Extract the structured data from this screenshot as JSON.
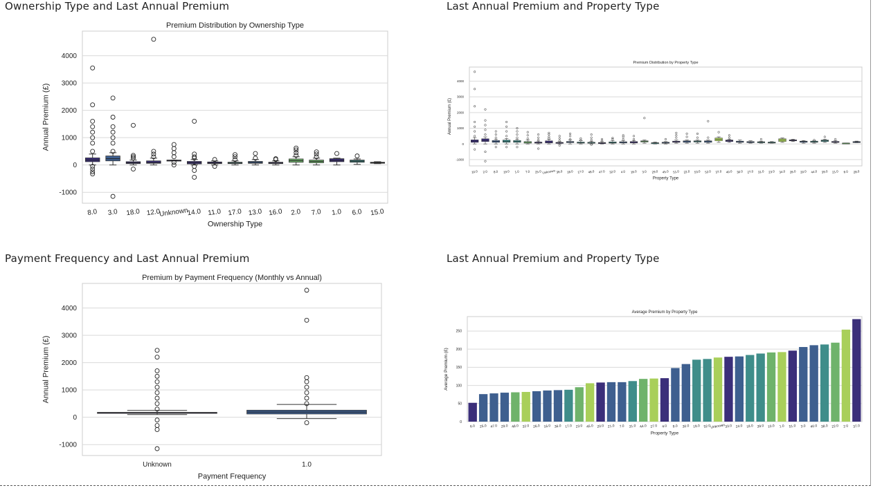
{
  "panels": {
    "p1": {
      "heading": "Ownership Type and Last Annual Premium"
    },
    "p2": {
      "heading": "Last Annual Premium and Property Type"
    },
    "p3": {
      "heading": "Payment Frequency and Last Annual Premium"
    },
    "p4": {
      "heading": "Last Annual Premium and Property Type"
    }
  },
  "colors": {
    "navy": "#3b2f7a",
    "blue": "#3e5f8f",
    "teal": "#3f8d8a",
    "green": "#6fb36b",
    "lime": "#a9cf5a",
    "grid": "#d9d9d9"
  },
  "chart_data": [
    {
      "type": "box",
      "title": "Premium Distribution by Ownership Type",
      "xlabel": "Ownership Type",
      "ylabel": "Annual Premium (£)",
      "yticks": [
        -1000,
        0,
        1000,
        2000,
        3000,
        4000
      ],
      "ylim": [
        -1400,
        4900
      ],
      "grid": "horizontal",
      "categories": [
        "8.0",
        "3.0",
        "18.0",
        "12.0",
        "Unknown",
        "14.0",
        "11.0",
        "17.0",
        "13.0",
        "16.0",
        "2.0",
        "7.0",
        "1.0",
        "6.0",
        "15.0"
      ],
      "boxes": [
        {
          "q1": 120,
          "med": 180,
          "q3": 260,
          "lo": 0,
          "hi": 400,
          "out": [
            -330,
            -250,
            -150,
            -50,
            500,
            800,
            1000,
            1200,
            1400,
            1600,
            2200,
            3550
          ],
          "color": "navy"
        },
        {
          "q1": 150,
          "med": 230,
          "q3": 330,
          "lo": 0,
          "hi": 450,
          "out": [
            -1150,
            500,
            800,
            1000,
            1200,
            1400,
            1750,
            2450
          ],
          "color": "blue"
        },
        {
          "q1": 50,
          "med": 80,
          "q3": 120,
          "lo": 0,
          "hi": 180,
          "out": [
            -150,
            250,
            300,
            350,
            1450
          ],
          "color": "navy"
        },
        {
          "q1": 60,
          "med": 90,
          "q3": 150,
          "lo": 0,
          "hi": 250,
          "out": [
            300,
            400,
            500,
            4600
          ],
          "color": "navy"
        },
        {
          "q1": 150,
          "med": 170,
          "q3": 180,
          "lo": 150,
          "hi": 180,
          "out": [
            0,
            100,
            300,
            450,
            600,
            750
          ],
          "color": "navy"
        },
        {
          "q1": 40,
          "med": 80,
          "q3": 130,
          "lo": 0,
          "hi": 200,
          "out": [
            -450,
            -200,
            -50,
            250,
            300,
            400,
            1600
          ],
          "color": "navy"
        },
        {
          "q1": 50,
          "med": 70,
          "q3": 110,
          "lo": 0,
          "hi": 150,
          "out": [
            -50,
            200
          ],
          "color": "navy"
        },
        {
          "q1": 50,
          "med": 70,
          "q3": 100,
          "lo": 0,
          "hi": 150,
          "out": [
            200,
            300,
            380
          ],
          "color": "teal"
        },
        {
          "q1": 60,
          "med": 90,
          "q3": 130,
          "lo": 0,
          "hi": 200,
          "out": [
            250,
            420
          ],
          "color": "blue"
        },
        {
          "q1": 50,
          "med": 70,
          "q3": 100,
          "lo": 0,
          "hi": 150,
          "out": [
            200,
            230
          ],
          "color": "navy"
        },
        {
          "q1": 100,
          "med": 160,
          "q3": 220,
          "lo": 0,
          "hi": 300,
          "out": [
            350,
            450,
            550,
            620
          ],
          "color": "green"
        },
        {
          "q1": 80,
          "med": 130,
          "q3": 180,
          "lo": 0,
          "hi": 250,
          "out": [
            300,
            400,
            480
          ],
          "color": "green"
        },
        {
          "q1": 120,
          "med": 170,
          "q3": 230,
          "lo": 0,
          "hi": 250,
          "out": [
            420
          ],
          "color": "navy"
        },
        {
          "q1": 100,
          "med": 140,
          "q3": 180,
          "lo": 20,
          "hi": 220,
          "out": [
            330
          ],
          "color": "teal"
        },
        {
          "q1": 70,
          "med": 80,
          "q3": 100,
          "lo": 50,
          "hi": 120,
          "out": [],
          "color": "navy"
        }
      ]
    },
    {
      "type": "box",
      "title": "Premium Distribution by Property Type",
      "xlabel": "Property Type",
      "ylabel": "Annual Premium (£)",
      "yticks": [
        -1000,
        0,
        1000,
        2000,
        3000,
        4000
      ],
      "ylim": [
        -1400,
        4900
      ],
      "grid": "horizontal",
      "categories": [
        "10.0",
        "2.0",
        "8.0",
        "19.0",
        "1.0",
        "7.0",
        "25.0",
        "Unknown",
        "36.0",
        "18.0",
        "17.0",
        "48.0",
        "47.0",
        "32.0",
        "4.0",
        "16.0",
        "3.0",
        "29.0",
        "45.0",
        "51.0",
        "22.0",
        "53.0",
        "52.0",
        "37.0",
        "40.0",
        "30.0",
        "27.0",
        "31.0",
        "23.0",
        "34.0",
        "26.0",
        "20.0",
        "44.0",
        "39.0",
        "21.0",
        "6.0",
        "28.0"
      ],
      "boxes": [
        {
          "q1": 100,
          "med": 180,
          "q3": 260,
          "lo": 0,
          "hi": 400,
          "out": [
            -350,
            500,
            800,
            1100,
            1400,
            2400,
            3500,
            4600
          ],
          "color": "navy"
        },
        {
          "q1": 150,
          "med": 230,
          "q3": 330,
          "lo": 0,
          "hi": 450,
          "out": [
            -1100,
            -500,
            600,
            900,
            1200,
            1500,
            2200
          ],
          "color": "navy"
        },
        {
          "q1": 100,
          "med": 150,
          "q3": 220,
          "lo": 0,
          "hi": 300,
          "out": [
            -200,
            400,
            600,
            800
          ],
          "color": "blue"
        },
        {
          "q1": 100,
          "med": 170,
          "q3": 250,
          "lo": 0,
          "hi": 350,
          "out": [
            -200,
            500,
            800,
            1100,
            1400
          ],
          "color": "teal"
        },
        {
          "q1": 100,
          "med": 150,
          "q3": 220,
          "lo": 0,
          "hi": 300,
          "out": [
            -200,
            400,
            600,
            800,
            1000
          ],
          "color": "teal"
        },
        {
          "q1": 50,
          "med": 100,
          "q3": 150,
          "lo": 0,
          "hi": 250,
          "out": [
            350,
            550,
            750
          ],
          "color": "green"
        },
        {
          "q1": 50,
          "med": 80,
          "q3": 120,
          "lo": 0,
          "hi": 180,
          "out": [
            -300,
            250,
            400,
            600
          ],
          "color": "navy"
        },
        {
          "q1": 60,
          "med": 120,
          "q3": 200,
          "lo": 0,
          "hi": 300,
          "out": [
            350,
            450,
            600,
            700
          ],
          "color": "navy"
        },
        {
          "q1": 40,
          "med": 70,
          "q3": 100,
          "lo": 0,
          "hi": 150,
          "out": [
            -100,
            200,
            350,
            500
          ],
          "color": "navy"
        },
        {
          "q1": 80,
          "med": 120,
          "q3": 160,
          "lo": 0,
          "hi": 250,
          "out": [
            300,
            500,
            650
          ],
          "color": "blue"
        },
        {
          "q1": 50,
          "med": 80,
          "q3": 120,
          "lo": 0,
          "hi": 200,
          "out": [
            250,
            350
          ],
          "color": "teal"
        },
        {
          "q1": 40,
          "med": 70,
          "q3": 110,
          "lo": 0,
          "hi": 170,
          "out": [
            -50,
            250,
            400,
            600
          ],
          "color": "teal"
        },
        {
          "q1": 30,
          "med": 60,
          "q3": 90,
          "lo": 0,
          "hi": 150,
          "out": [
            200,
            300
          ],
          "color": "navy"
        },
        {
          "q1": 50,
          "med": 90,
          "q3": 130,
          "lo": 0,
          "hi": 200,
          "out": [
            300,
            380
          ],
          "color": "teal"
        },
        {
          "q1": 60,
          "med": 100,
          "q3": 140,
          "lo": 0,
          "hi": 200,
          "out": [
            300,
            450,
            550
          ],
          "color": "blue"
        },
        {
          "q1": 60,
          "med": 100,
          "q3": 150,
          "lo": 0,
          "hi": 220,
          "out": [
            300,
            500
          ],
          "color": "navy"
        },
        {
          "q1": 120,
          "med": 160,
          "q3": 200,
          "lo": 50,
          "hi": 250,
          "out": [
            1650
          ],
          "color": "green"
        },
        {
          "q1": 40,
          "med": 60,
          "q3": 80,
          "lo": 0,
          "hi": 120,
          "out": [],
          "color": "teal"
        },
        {
          "q1": 50,
          "med": 80,
          "q3": 110,
          "lo": 0,
          "hi": 150,
          "out": [
            300
          ],
          "color": "blue"
        },
        {
          "q1": 100,
          "med": 140,
          "q3": 180,
          "lo": 50,
          "hi": 250,
          "out": [
            400,
            550,
            700
          ],
          "color": "navy"
        },
        {
          "q1": 100,
          "med": 150,
          "q3": 200,
          "lo": 50,
          "hi": 250,
          "out": [
            450,
            650
          ],
          "color": "blue"
        },
        {
          "q1": 120,
          "med": 160,
          "q3": 200,
          "lo": 50,
          "hi": 250,
          "out": [
            400,
            650
          ],
          "color": "teal"
        },
        {
          "q1": 100,
          "med": 150,
          "q3": 200,
          "lo": 50,
          "hi": 250,
          "out": [
            400,
            1450
          ],
          "color": "blue"
        },
        {
          "q1": 200,
          "med": 300,
          "q3": 380,
          "lo": 100,
          "hi": 450,
          "out": [
            750
          ],
          "color": "lime"
        },
        {
          "q1": 150,
          "med": 200,
          "q3": 250,
          "lo": 100,
          "hi": 300,
          "out": [
            400,
            550
          ],
          "color": "navy"
        },
        {
          "q1": 100,
          "med": 140,
          "q3": 180,
          "lo": 50,
          "hi": 250,
          "out": [],
          "color": "blue"
        },
        {
          "q1": 80,
          "med": 120,
          "q3": 150,
          "lo": 50,
          "hi": 200,
          "out": [],
          "color": "blue"
        },
        {
          "q1": 80,
          "med": 110,
          "q3": 140,
          "lo": 50,
          "hi": 180,
          "out": [
            300
          ],
          "color": "teal"
        },
        {
          "q1": 60,
          "med": 90,
          "q3": 120,
          "lo": 50,
          "hi": 150,
          "out": [],
          "color": "teal"
        },
        {
          "q1": 150,
          "med": 250,
          "q3": 330,
          "lo": 100,
          "hi": 380,
          "out": [],
          "color": "lime"
        },
        {
          "q1": 200,
          "med": 230,
          "q3": 260,
          "lo": 150,
          "hi": 300,
          "out": [],
          "color": "navy"
        },
        {
          "q1": 100,
          "med": 150,
          "q3": 180,
          "lo": 50,
          "hi": 220,
          "out": [],
          "color": "blue"
        },
        {
          "q1": 100,
          "med": 140,
          "q3": 180,
          "lo": 50,
          "hi": 200,
          "out": [
            250
          ],
          "color": "teal"
        },
        {
          "q1": 150,
          "med": 200,
          "q3": 250,
          "lo": 100,
          "hi": 300,
          "out": [
            450
          ],
          "color": "teal"
        },
        {
          "q1": 100,
          "med": 130,
          "q3": 160,
          "lo": 50,
          "hi": 200,
          "out": [
            300
          ],
          "color": "navy"
        },
        {
          "q1": 40,
          "med": 50,
          "q3": 60,
          "lo": 40,
          "hi": 60,
          "out": [],
          "color": "green"
        },
        {
          "q1": 100,
          "med": 120,
          "q3": 150,
          "lo": 80,
          "hi": 180,
          "out": [],
          "color": "blue"
        }
      ]
    },
    {
      "type": "box",
      "title": "Premium by Payment Frequency (Monthly vs Annual)",
      "xlabel": "Payment Frequency",
      "ylabel": "Annual Premium (£)",
      "yticks": [
        -1000,
        0,
        1000,
        2000,
        3000,
        4000
      ],
      "ylim": [
        -1400,
        4900
      ],
      "grid": "horizontal",
      "categories": [
        "Unknown",
        "1.0"
      ],
      "boxes": [
        {
          "q1": 150,
          "med": 170,
          "q3": 180,
          "lo": 100,
          "hi": 250,
          "out": [
            -1150,
            -450,
            -300,
            -100,
            300,
            500,
            700,
            900,
            1100,
            1300,
            1500,
            1700,
            2200,
            2450
          ],
          "color": "navy"
        },
        {
          "q1": 120,
          "med": 190,
          "q3": 260,
          "lo": -50,
          "hi": 470,
          "out": [
            -200,
            500,
            700,
            900,
            1100,
            1300,
            1450,
            3550,
            4650
          ],
          "color": "blue"
        }
      ]
    },
    {
      "type": "bar",
      "title": "Average Premium by Property Type",
      "xlabel": "Property Type",
      "ylabel": "Average Premium (£)",
      "yticks": [
        0,
        50,
        100,
        150,
        200,
        250
      ],
      "ylim": [
        0,
        290
      ],
      "grid": "horizontal",
      "categories": [
        "6.0",
        "25.0",
        "47.0",
        "29.0",
        "48.0",
        "32.0",
        "26.0",
        "16.0",
        "36.0",
        "17.0",
        "23.0",
        "45.0",
        "20.0",
        "21.0",
        "7.0",
        "31.0",
        "44.0",
        "27.0",
        "4.0",
        "8.0",
        "30.0",
        "19.0",
        "52.0",
        "Unknown",
        "33.0",
        "24.0",
        "18.0",
        "39.0",
        "10.0",
        "1.0",
        "51.0",
        "3.0",
        "40.0",
        "38.0",
        "22.0",
        "2.0",
        "37.0"
      ],
      "values": [
        52,
        76,
        78,
        80,
        81,
        82,
        84,
        86,
        87,
        88,
        95,
        106,
        108,
        109,
        109,
        112,
        118,
        119,
        120,
        148,
        159,
        171,
        173,
        177,
        179,
        180,
        184,
        188,
        191,
        192,
        196,
        206,
        211,
        213,
        218,
        254,
        283
      ],
      "bar_colors": [
        "navy",
        "blue",
        "blue",
        "blue",
        "green",
        "lime",
        "blue",
        "blue",
        "blue",
        "teal",
        "green",
        "lime",
        "navy",
        "blue",
        "blue",
        "teal",
        "green",
        "lime",
        "navy",
        "blue",
        "blue",
        "teal",
        "teal",
        "lime",
        "navy",
        "blue",
        "teal",
        "teal",
        "green",
        "lime",
        "navy",
        "blue",
        "blue",
        "teal",
        "green",
        "lime",
        "navy"
      ]
    }
  ]
}
